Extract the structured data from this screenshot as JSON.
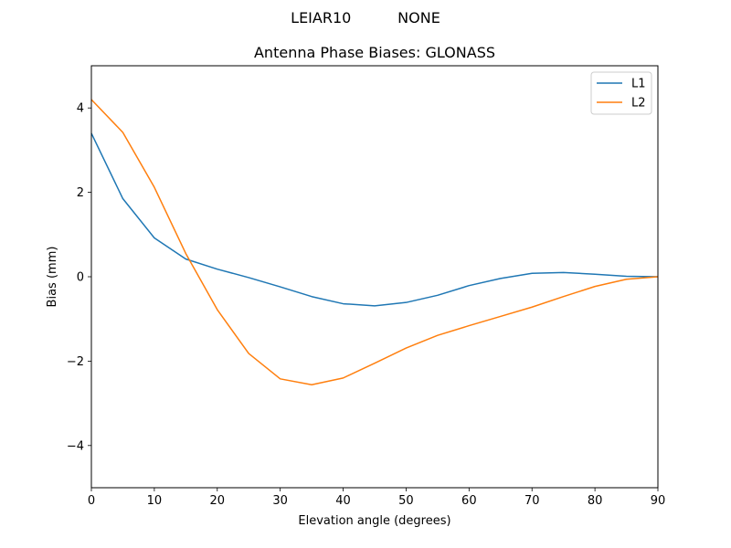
{
  "chart_data": {
    "type": "line",
    "suptitle": "LEIAR10          NONE",
    "title": "Antenna Phase Biases: GLONASS",
    "xlabel": "Elevation angle (degrees)",
    "ylabel": "Bias (mm)",
    "xlim": [
      0,
      90
    ],
    "ylim": [
      -5,
      5
    ],
    "xticks": [
      0,
      10,
      20,
      30,
      40,
      50,
      60,
      70,
      80,
      90
    ],
    "yticks": [
      -4,
      -2,
      0,
      2,
      4
    ],
    "grid": false,
    "legend_position": "upper right",
    "x": [
      0,
      5,
      10,
      15,
      20,
      25,
      30,
      35,
      40,
      45,
      50,
      55,
      60,
      65,
      70,
      75,
      80,
      85,
      90
    ],
    "series": [
      {
        "name": "L1",
        "color": "#1f77b4",
        "values": [
          3.4,
          1.85,
          0.92,
          0.42,
          0.18,
          -0.02,
          -0.24,
          -0.47,
          -0.64,
          -0.69,
          -0.61,
          -0.44,
          -0.21,
          -0.04,
          0.08,
          0.1,
          0.06,
          0.01,
          0.0
        ]
      },
      {
        "name": "L2",
        "color": "#ff7f0e",
        "values": [
          4.2,
          3.42,
          2.12,
          0.55,
          -0.78,
          -1.82,
          -2.42,
          -2.56,
          -2.4,
          -2.05,
          -1.69,
          -1.39,
          -1.16,
          -0.94,
          -0.72,
          -0.47,
          -0.23,
          -0.06,
          0.0
        ]
      }
    ]
  }
}
